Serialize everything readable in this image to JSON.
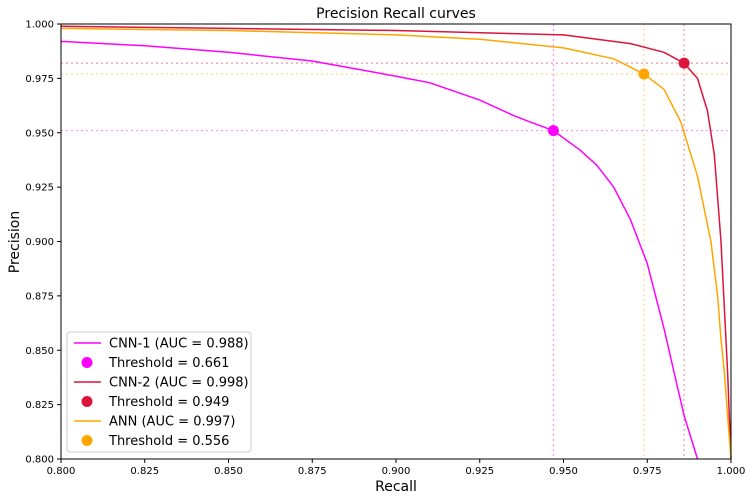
{
  "chart_data": {
    "type": "line",
    "title": "Precision Recall curves",
    "xlabel": "Recall",
    "ylabel": "Precision",
    "xlim": [
      0.8,
      1.0
    ],
    "ylim": [
      0.8,
      1.0
    ],
    "grid": false,
    "legend_position": "lower-left",
    "x_ticks": [
      "0.800",
      "0.825",
      "0.850",
      "0.875",
      "0.900",
      "0.925",
      "0.950",
      "0.975",
      "1.000"
    ],
    "y_ticks": [
      "0.800",
      "0.825",
      "0.850",
      "0.875",
      "0.900",
      "0.925",
      "0.950",
      "0.975",
      "1.000"
    ],
    "x_tick_values": [
      0.8,
      0.825,
      0.85,
      0.875,
      0.9,
      0.925,
      0.95,
      0.975,
      1.0
    ],
    "y_tick_values": [
      0.8,
      0.825,
      0.85,
      0.875,
      0.9,
      0.925,
      0.95,
      0.975,
      1.0
    ],
    "series": [
      {
        "name": "CNN-1 (AUC = 0.988)",
        "color": "#ff00ff",
        "x": [
          0.8,
          0.825,
          0.85,
          0.875,
          0.9,
          0.91,
          0.925,
          0.935,
          0.94,
          0.947,
          0.955,
          0.96,
          0.965,
          0.97,
          0.975,
          0.98,
          0.983,
          0.986,
          0.988,
          0.99
        ],
        "y": [
          0.992,
          0.99,
          0.987,
          0.983,
          0.976,
          0.973,
          0.965,
          0.958,
          0.955,
          0.951,
          0.942,
          0.935,
          0.925,
          0.91,
          0.89,
          0.86,
          0.84,
          0.82,
          0.81,
          0.8
        ]
      },
      {
        "name": "CNN-2 (AUC = 0.998)",
        "color": "#dc143c",
        "x": [
          0.8,
          0.85,
          0.9,
          0.95,
          0.97,
          0.98,
          0.986,
          0.99,
          0.993,
          0.995,
          0.997,
          0.998,
          0.999,
          0.9995,
          1.0
        ],
        "y": [
          0.999,
          0.998,
          0.997,
          0.995,
          0.991,
          0.987,
          0.982,
          0.975,
          0.96,
          0.94,
          0.9,
          0.87,
          0.84,
          0.82,
          0.8
        ]
      },
      {
        "name": "ANN (AUC = 0.997)",
        "color": "#ffa500",
        "x": [
          0.8,
          0.85,
          0.9,
          0.925,
          0.95,
          0.965,
          0.974,
          0.98,
          0.985,
          0.99,
          0.994,
          0.996,
          0.997,
          0.998,
          0.999,
          1.0
        ],
        "y": [
          0.998,
          0.997,
          0.995,
          0.993,
          0.989,
          0.984,
          0.977,
          0.97,
          0.955,
          0.93,
          0.9,
          0.875,
          0.855,
          0.84,
          0.82,
          0.8
        ]
      }
    ],
    "thresholds": [
      {
        "name": "Threshold = 0.661",
        "color": "#ff00ff",
        "x": 0.947,
        "y": 0.951
      },
      {
        "name": "Threshold = 0.949",
        "color": "#dc143c",
        "x": 0.986,
        "y": 0.982
      },
      {
        "name": "Threshold = 0.556",
        "color": "#ffa500",
        "x": 0.974,
        "y": 0.977
      }
    ],
    "legend_order": [
      "s0",
      "t0",
      "s1",
      "t1",
      "s2",
      "t2"
    ]
  }
}
